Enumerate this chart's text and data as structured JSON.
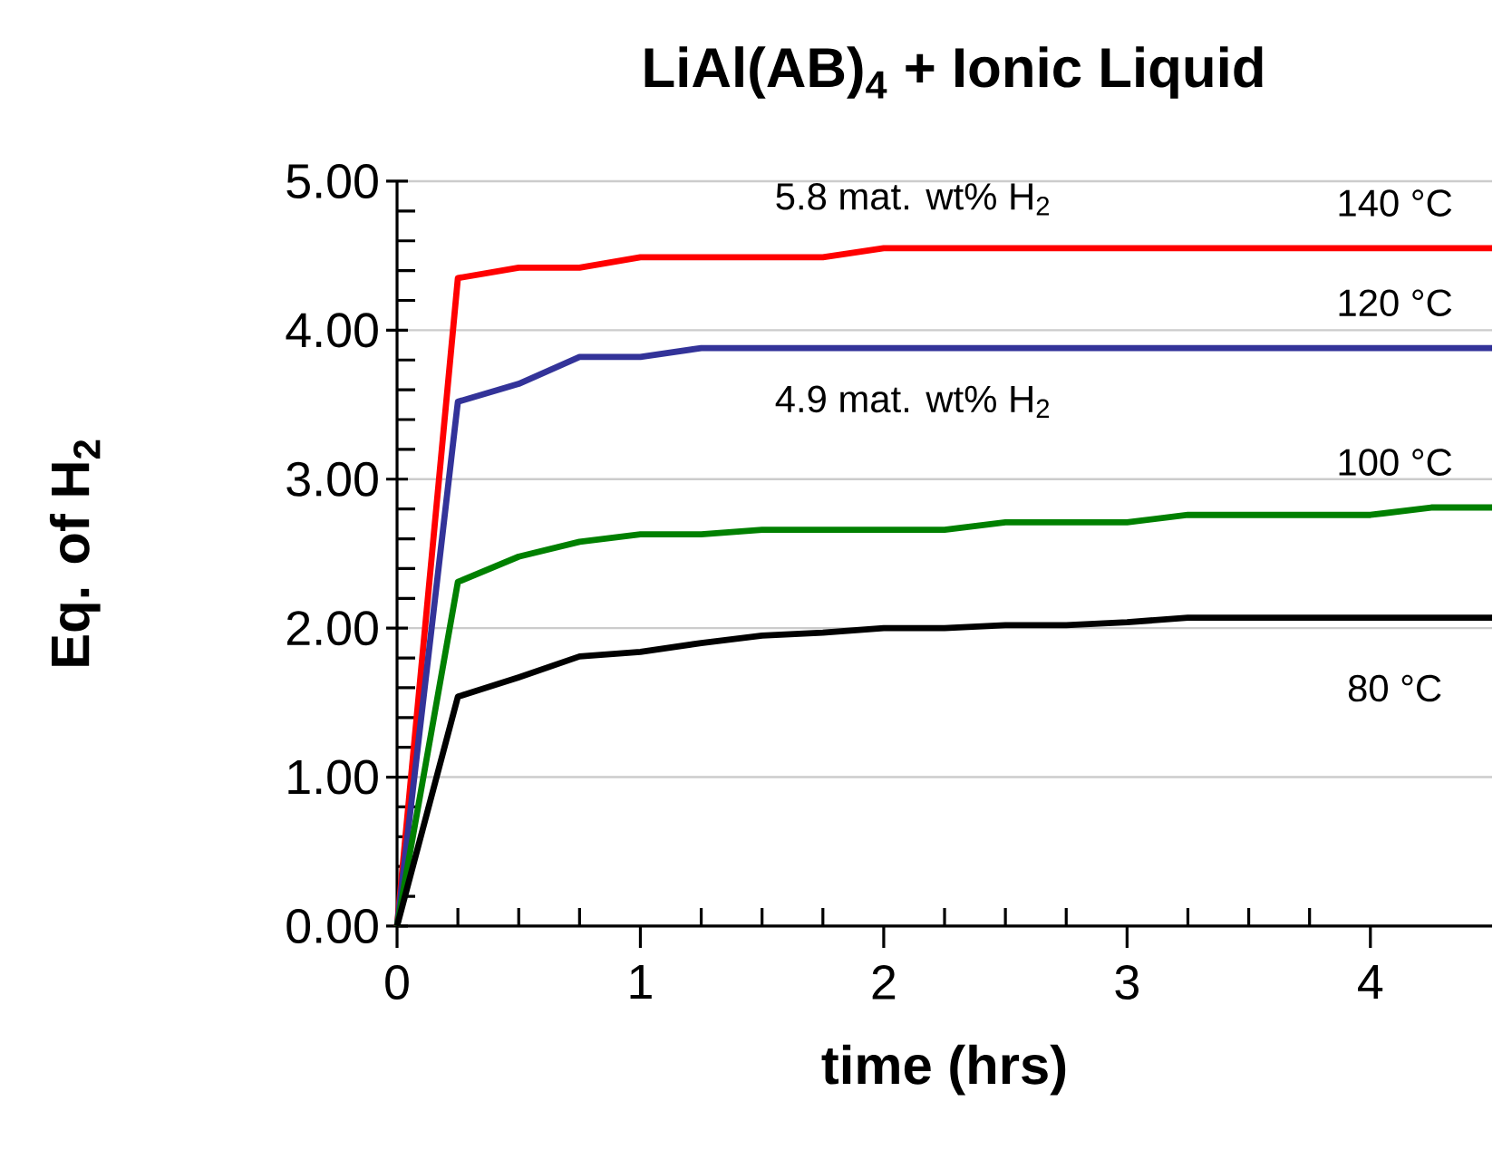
{
  "chart_data": {
    "type": "line",
    "title": "LiAl(AB)$_{4}$ + Ionic Liquid",
    "xlabel": "time (hrs)",
    "ylabel": "Eq. of H$_{2}$",
    "x": [
      0,
      0.25,
      0.5,
      0.75,
      1,
      1.25,
      1.5,
      1.75,
      2,
      2.25,
      2.5,
      2.75,
      3,
      3.25,
      3.5,
      3.75,
      4,
      4.25,
      4.5
    ],
    "series": [
      {
        "name": "140 °C",
        "color": "#ff0000",
        "values": [
          0,
          4.35,
          4.42,
          4.42,
          4.49,
          4.49,
          4.49,
          4.49,
          4.55,
          4.55,
          4.55,
          4.55,
          4.55,
          4.55,
          4.55,
          4.55,
          4.55,
          4.55,
          4.55
        ]
      },
      {
        "name": "120 °C",
        "color": "#333399",
        "values": [
          0,
          3.52,
          3.64,
          3.82,
          3.82,
          3.88,
          3.88,
          3.88,
          3.88,
          3.88,
          3.88,
          3.88,
          3.88,
          3.88,
          3.88,
          3.88,
          3.88,
          3.88,
          3.88
        ]
      },
      {
        "name": "100 °C",
        "color": "#008000",
        "values": [
          0,
          2.31,
          2.48,
          2.58,
          2.63,
          2.63,
          2.66,
          2.66,
          2.66,
          2.66,
          2.71,
          2.71,
          2.71,
          2.76,
          2.76,
          2.76,
          2.76,
          2.81,
          2.81
        ]
      },
      {
        "name": "80 °C",
        "color": "#000000",
        "values": [
          0,
          1.54,
          1.67,
          1.81,
          1.84,
          1.9,
          1.95,
          1.97,
          2.0,
          2.0,
          2.02,
          2.02,
          2.04,
          2.07,
          2.07,
          2.07,
          2.07,
          2.07,
          2.07
        ]
      }
    ],
    "annotations": [
      "5.8 mat. wt% H$_{2}$",
      "4.9 mat. wt% H$_{2}$"
    ],
    "xlim": [
      0,
      4.5
    ],
    "xticks": [
      0,
      1,
      2,
      3,
      4
    ],
    "ylim": [
      0,
      5
    ],
    "yticks": [
      {
        "value": 0,
        "label": "0.00"
      },
      {
        "value": 1,
        "label": "1.00"
      },
      {
        "value": 2,
        "label": "2.00"
      },
      {
        "value": 3,
        "label": "3.00"
      },
      {
        "value": 4,
        "label": "4.00"
      },
      {
        "value": 5,
        "label": "5.00"
      }
    ],
    "grid": "y",
    "marker": "none",
    "line_style": "solid"
  }
}
